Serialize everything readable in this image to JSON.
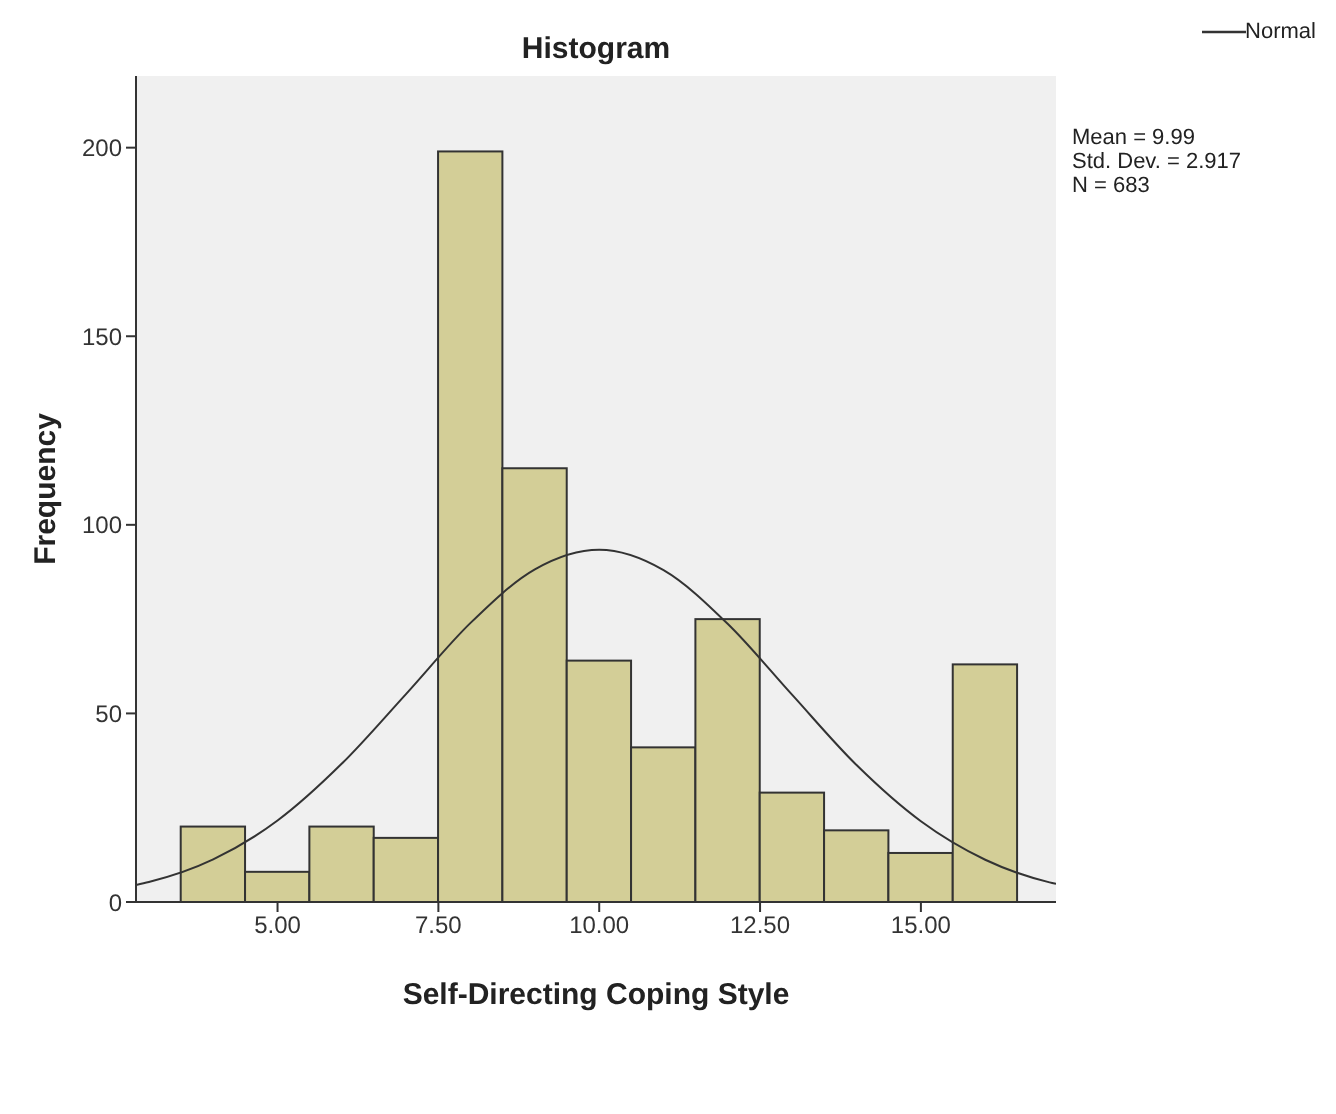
{
  "chart_data": {
    "type": "histogram",
    "title": "Histogram",
    "xlabel": "Self-Directing Coping Style",
    "ylabel": "Frequency",
    "bins": [
      3.5,
      4.5,
      5.5,
      6.5,
      7.5,
      8.5,
      9.5,
      10.5,
      11.5,
      12.5,
      13.5,
      14.5,
      15.5,
      16.5
    ],
    "values": [
      20,
      8,
      20,
      17,
      199,
      115,
      64,
      41,
      75,
      29,
      19,
      13,
      63
    ],
    "color": "#d3ce97",
    "series": [
      {
        "type": "line",
        "name": "Normal",
        "color": "#333333",
        "x": [
          2.8,
          3,
          4,
          5,
          6,
          7,
          8,
          9,
          10,
          11,
          12,
          13,
          14,
          15,
          16,
          17,
          17.1
        ],
        "values": [
          4.5,
          5.3,
          11.3,
          21.6,
          36.7,
          55.2,
          74,
          88.2,
          93.4,
          88,
          73.7,
          54.9,
          36.3,
          21.4,
          11.2,
          5.2,
          4.8
        ]
      }
    ],
    "xlim": [
      2.8,
      17.1
    ],
    "xticks": [
      {
        "value": 5,
        "label": "5.00"
      },
      {
        "value": 7.5,
        "label": "7.50"
      },
      {
        "value": 10,
        "label": "10.00"
      },
      {
        "value": 12.5,
        "label": "12.50"
      },
      {
        "value": 15,
        "label": "15.00"
      }
    ],
    "ylim": [
      0,
      219
    ],
    "yticks": [
      0,
      50,
      100,
      150,
      200
    ],
    "legend": "top right",
    "marker": "none",
    "annotations": [
      "Mean = 9.99",
      "Std. Dev. = 2.917",
      "N = 683"
    ]
  }
}
